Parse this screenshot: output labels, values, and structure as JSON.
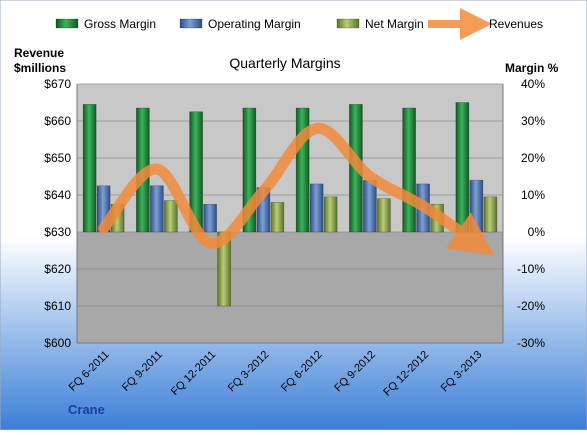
{
  "chart_data": {
    "type": "bar",
    "title": "Quarterly Margins",
    "company": "Crane",
    "left_axis": {
      "label_line1": "Revenue",
      "label_line2": "$millions",
      "min": 600,
      "max": 670,
      "step": 10,
      "tick_labels": [
        "$600",
        "$610",
        "$620",
        "$630",
        "$640",
        "$650",
        "$660",
        "$670"
      ]
    },
    "right_axis": {
      "label": "Margin %",
      "min": -30,
      "max": 40,
      "step": 10,
      "tick_labels": [
        "-30%",
        "-20%",
        "-10%",
        "0%",
        "10%",
        "20%",
        "30%",
        "40%"
      ]
    },
    "categories": [
      "FQ 6-2011",
      "FQ 9-2011",
      "FQ 12-2011",
      "FQ 3-2012",
      "FQ 6-2012",
      "FQ 9-2012",
      "FQ 12-2012",
      "FQ 3-2013"
    ],
    "series": [
      {
        "name": "Gross Margin",
        "type": "bar",
        "axis": "right",
        "color": "#1E8A3C",
        "values": [
          34.5,
          33.5,
          32.5,
          33.5,
          33.5,
          34.5,
          33.5,
          35.0
        ]
      },
      {
        "name": "Operating Margin",
        "type": "bar",
        "axis": "right",
        "color": "#4A72B0",
        "values": [
          12.5,
          12.5,
          7.5,
          12.0,
          13.0,
          14.0,
          13.0,
          14.0
        ]
      },
      {
        "name": "Net Margin",
        "type": "bar",
        "axis": "right",
        "color": "#8FA84A",
        "values": [
          7.5,
          8.5,
          -20.0,
          8.0,
          9.5,
          9.0,
          7.5,
          9.5
        ]
      },
      {
        "name": "Revenues",
        "type": "line",
        "axis": "left",
        "color": "#F28A3A",
        "values": [
          631,
          647,
          627,
          641,
          658,
          645,
          637,
          627
        ]
      }
    ],
    "legend_position": "top",
    "grid": true
  },
  "colors": {
    "background_top": "#FFFFFF",
    "background_bottom": "#3A7FD8",
    "plot_upper": "#C8C8C8",
    "plot_lower": "#A8A8A8",
    "company_label": "#1F3C9E"
  }
}
